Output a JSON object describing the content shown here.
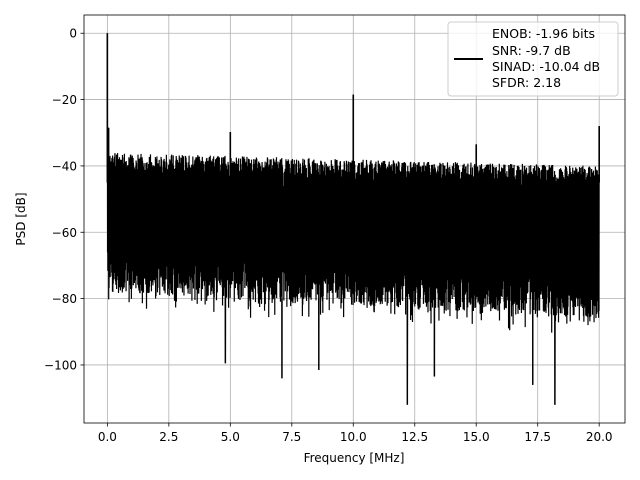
{
  "chart_data": {
    "type": "line",
    "xlabel": "Frequency [MHz]",
    "ylabel": "PSD [dB]",
    "xlim": [
      -0.95,
      21.05
    ],
    "ylim": [
      -117.5,
      5.5
    ],
    "xticks": [
      0.0,
      2.5,
      5.0,
      7.5,
      10.0,
      12.5,
      15.0,
      17.5,
      20.0
    ],
    "xtick_labels": [
      "0.0",
      "2.5",
      "5.0",
      "7.5",
      "10.0",
      "12.5",
      "15.0",
      "17.5",
      "20.0"
    ],
    "yticks": [
      0,
      -20,
      -40,
      -60,
      -80,
      -100
    ],
    "ytick_labels": [
      "0",
      "−20",
      "−40",
      "−60",
      "−80",
      "−100"
    ],
    "grid": true,
    "legend_position": "top-right",
    "series": [
      {
        "name": "ENOB: -1.96 bits\nSNR: -9.7 dB\nSINAD: -10.04 dB\nSFDR: 2.18",
        "color": "#000000",
        "noise_floor": {
          "x_start": 0.0,
          "x_end": 20.0,
          "upper_db": [
            -36,
            -40
          ],
          "lower_db": [
            -78,
            -86
          ],
          "deep_dip_min_db": -112
        },
        "spikes": [
          {
            "x": 0.0,
            "y": 0.0
          },
          {
            "x": 0.05,
            "y": -28.5
          },
          {
            "x": 5.0,
            "y": -29.8
          },
          {
            "x": 10.0,
            "y": -18.5
          },
          {
            "x": 15.0,
            "y": -33.5
          },
          {
            "x": 20.0,
            "y": -28.0
          }
        ],
        "dips": [
          {
            "x": 4.8,
            "y": -99.5
          },
          {
            "x": 7.1,
            "y": -104.0
          },
          {
            "x": 8.6,
            "y": -101.5
          },
          {
            "x": 12.2,
            "y": -112.0
          },
          {
            "x": 13.3,
            "y": -103.5
          },
          {
            "x": 17.3,
            "y": -106.0
          },
          {
            "x": 18.2,
            "y": -112.0
          }
        ]
      }
    ]
  },
  "legend": {
    "lines": [
      "ENOB: -1.96 bits",
      "SNR: -9.7 dB",
      "SINAD: -10.04 dB",
      "SFDR: 2.18"
    ]
  }
}
